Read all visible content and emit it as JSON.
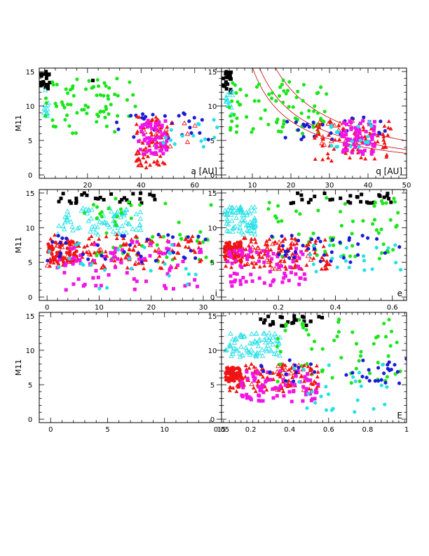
{
  "figure": {
    "ylabel": "M11",
    "colors": {
      "black": "#000000",
      "green": "#19e619",
      "cyan": "#22e0e6",
      "blue": "#1a1ad6",
      "red": "#f01414",
      "magenta": "#f014e6",
      "curve": "#c00000"
    }
  },
  "chart_data": [
    {
      "type": "scatter",
      "panel_label": "a [AU]",
      "xlim": [
        2,
        70
      ],
      "ylim": [
        -0.5,
        15.5
      ],
      "xticks": [
        20,
        40,
        60
      ],
      "yticks": [
        0,
        5,
        10,
        15
      ],
      "series": [
        {
          "color": "black",
          "marker": "square",
          "count": 22,
          "x": [
            2,
            6
          ],
          "y": [
            12,
            15
          ]
        },
        {
          "color": "black",
          "marker": "square",
          "count": 1,
          "x": [
            22,
            22
          ],
          "y": [
            13.7,
            13.7
          ]
        },
        {
          "color": "cyan",
          "marker": "triangle-open",
          "count": 12,
          "x": [
            3,
            6
          ],
          "y": [
            8.5,
            12.5
          ]
        },
        {
          "color": "green",
          "marker": "hexagon",
          "count": 70,
          "x": [
            4,
            38
          ],
          "y": [
            6,
            14
          ]
        },
        {
          "color": "blue",
          "marker": "hexagon",
          "count": 25,
          "x": [
            30,
            66
          ],
          "y": [
            5,
            9
          ]
        },
        {
          "color": "red",
          "marker": "triangle",
          "count": 70,
          "x": [
            38,
            50
          ],
          "y": [
            1,
            8.5
          ]
        },
        {
          "color": "red",
          "marker": "triangle-open",
          "count": 15,
          "x": [
            38,
            62
          ],
          "y": [
            4,
            8
          ]
        },
        {
          "color": "magenta",
          "marker": "square",
          "count": 60,
          "x": [
            39,
            50
          ],
          "y": [
            3,
            8
          ]
        },
        {
          "color": "cyan",
          "marker": "hexagon",
          "count": 15,
          "x": [
            44,
            70
          ],
          "y": [
            4,
            8
          ]
        }
      ]
    },
    {
      "type": "scatter",
      "panel_label": "q [AU]",
      "xlim": [
        2,
        50
      ],
      "ylim": [
        -0.5,
        15.5
      ],
      "xticks": [
        10,
        20,
        30,
        40,
        50
      ],
      "yticks": [
        0,
        5,
        10,
        15
      ],
      "curves": [
        {
          "ref_x": 40,
          "ref_y": 6.2
        },
        {
          "ref_x": 40,
          "ref_y": 4.6
        },
        {
          "ref_x": 40,
          "ref_y": 3.9
        }
      ],
      "series": [
        {
          "color": "black",
          "marker": "square",
          "count": 22,
          "x": [
            2,
            4.5
          ],
          "y": [
            12,
            15
          ]
        },
        {
          "color": "cyan",
          "marker": "triangle-open",
          "count": 15,
          "x": [
            3,
            5
          ],
          "y": [
            8.5,
            12.5
          ]
        },
        {
          "color": "green",
          "marker": "hexagon",
          "count": 80,
          "x": [
            4,
            30
          ],
          "y": [
            6,
            14
          ]
        },
        {
          "color": "blue",
          "marker": "hexagon",
          "count": 30,
          "x": [
            18,
            45
          ],
          "y": [
            5,
            8.5
          ]
        },
        {
          "color": "red",
          "marker": "triangle",
          "count": 80,
          "x": [
            26,
            46
          ],
          "y": [
            2,
            8
          ]
        },
        {
          "color": "red",
          "marker": "triangle-open",
          "count": 20,
          "x": [
            27,
            42
          ],
          "y": [
            4,
            8
          ]
        },
        {
          "color": "magenta",
          "marker": "square",
          "count": 70,
          "x": [
            33,
            42
          ],
          "y": [
            3,
            8
          ]
        },
        {
          "color": "cyan",
          "marker": "hexagon",
          "count": 20,
          "x": [
            30,
            42
          ],
          "y": [
            4,
            8
          ]
        }
      ]
    },
    {
      "type": "scatter",
      "panel_label": "i",
      "xlim": [
        -1.5,
        33.5
      ],
      "ylim": [
        -0.5,
        15.5
      ],
      "xticks": [
        0,
        10,
        20,
        30
      ],
      "yticks": [
        0,
        5,
        10,
        15
      ],
      "series": [
        {
          "color": "black",
          "marker": "square",
          "count": 30,
          "x": [
            2,
            21
          ],
          "y": [
            13.5,
            15
          ]
        },
        {
          "color": "cyan",
          "marker": "triangle-open",
          "count": 80,
          "x": [
            2,
            18
          ],
          "y": [
            9,
            13
          ]
        },
        {
          "color": "green",
          "marker": "hexagon",
          "count": 55,
          "x": [
            6,
            32
          ],
          "y": [
            5,
            14.5
          ]
        },
        {
          "color": "red",
          "marker": "hexagon",
          "count": 55,
          "x": [
            0,
            6
          ],
          "y": [
            5,
            8
          ]
        },
        {
          "color": "red",
          "marker": "triangle",
          "count": 120,
          "x": [
            0,
            30
          ],
          "y": [
            4,
            9
          ]
        },
        {
          "color": "red",
          "marker": "triangle-open",
          "count": 25,
          "x": [
            0,
            24
          ],
          "y": [
            4,
            8
          ]
        },
        {
          "color": "magenta",
          "marker": "square",
          "count": 75,
          "x": [
            2,
            30
          ],
          "y": [
            1,
            8
          ]
        },
        {
          "color": "blue",
          "marker": "hexagon",
          "count": 35,
          "x": [
            0,
            32
          ],
          "y": [
            5,
            9
          ]
        },
        {
          "color": "cyan",
          "marker": "hexagon",
          "count": 25,
          "x": [
            0,
            30
          ],
          "y": [
            1,
            8
          ]
        }
      ]
    },
    {
      "type": "scatter",
      "panel_label": "e",
      "xlim": [
        0,
        0.65
      ],
      "ylim": [
        -0.5,
        15.5
      ],
      "xticks": [
        0.2,
        0.4,
        0.6
      ],
      "yticks": [
        0,
        5,
        10,
        15
      ],
      "series": [
        {
          "color": "black",
          "marker": "square",
          "count": 30,
          "x": [
            0.22,
            0.6
          ],
          "y": [
            13.5,
            15
          ]
        },
        {
          "color": "cyan",
          "marker": "triangle-open",
          "count": 80,
          "x": [
            0.01,
            0.12
          ],
          "y": [
            9,
            13
          ]
        },
        {
          "color": "green",
          "marker": "hexagon",
          "count": 60,
          "x": [
            0.15,
            0.63
          ],
          "y": [
            5,
            14.5
          ]
        },
        {
          "color": "red",
          "marker": "hexagon",
          "count": 60,
          "x": [
            0.01,
            0.07
          ],
          "y": [
            5,
            8
          ]
        },
        {
          "color": "red",
          "marker": "triangle",
          "count": 120,
          "x": [
            0.01,
            0.38
          ],
          "y": [
            4,
            8.5
          ]
        },
        {
          "color": "red",
          "marker": "triangle-open",
          "count": 25,
          "x": [
            0.03,
            0.32
          ],
          "y": [
            4,
            8
          ]
        },
        {
          "color": "magenta",
          "marker": "square",
          "count": 75,
          "x": [
            0.02,
            0.3
          ],
          "y": [
            1.5,
            7
          ]
        },
        {
          "color": "blue",
          "marker": "hexagon",
          "count": 35,
          "x": [
            0.15,
            0.65
          ],
          "y": [
            5,
            9
          ]
        },
        {
          "color": "cyan",
          "marker": "hexagon",
          "count": 20,
          "x": [
            0.3,
            0.63
          ],
          "y": [
            3,
            8
          ]
        }
      ]
    },
    {
      "type": "scatter",
      "panel_label": "",
      "xlim": [
        -1,
        15
      ],
      "ylim": [
        -0.5,
        15.5
      ],
      "xticks": [
        0,
        5,
        10,
        15
      ],
      "xtick_labels": [
        "0",
        "5",
        "10",
        "15"
      ],
      "yticks": [
        0,
        5,
        10,
        15
      ],
      "series": []
    },
    {
      "type": "scatter",
      "panel_label": "E",
      "xlim": [
        0.05,
        1.0
      ],
      "ylim": [
        -0.5,
        15.5
      ],
      "xticks": [
        0.05,
        0.2,
        0.4,
        0.6,
        0.8,
        1
      ],
      "xtick_labels": [
        "0.05",
        "0.2",
        "0.4",
        "0.6",
        "0.8",
        "1"
      ],
      "yticks": [
        0,
        5,
        10,
        15
      ],
      "series": [
        {
          "color": "black",
          "marker": "square",
          "count": 25,
          "x": [
            0.25,
            0.58
          ],
          "y": [
            13.5,
            15
          ]
        },
        {
          "color": "cyan",
          "marker": "triangle-open",
          "count": 80,
          "x": [
            0.07,
            0.35
          ],
          "y": [
            9,
            12.5
          ]
        },
        {
          "color": "green",
          "marker": "hexagon",
          "count": 60,
          "x": [
            0.3,
            0.97
          ],
          "y": [
            5,
            14.5
          ]
        },
        {
          "color": "red",
          "marker": "hexagon",
          "count": 60,
          "x": [
            0.07,
            0.15
          ],
          "y": [
            5.5,
            7.5
          ]
        },
        {
          "color": "red",
          "marker": "triangle",
          "count": 120,
          "x": [
            0.08,
            0.55
          ],
          "y": [
            4,
            8
          ]
        },
        {
          "color": "red",
          "marker": "triangle-open",
          "count": 25,
          "x": [
            0.1,
            0.5
          ],
          "y": [
            4,
            8
          ]
        },
        {
          "color": "magenta",
          "marker": "square",
          "count": 75,
          "x": [
            0.15,
            0.55
          ],
          "y": [
            2.5,
            7
          ]
        },
        {
          "color": "blue",
          "marker": "hexagon",
          "count": 35,
          "x": [
            0.25,
            1.0
          ],
          "y": [
            5,
            9
          ]
        },
        {
          "color": "cyan",
          "marker": "hexagon",
          "count": 25,
          "x": [
            0.4,
            0.9
          ],
          "y": [
            1,
            8
          ]
        }
      ]
    }
  ]
}
